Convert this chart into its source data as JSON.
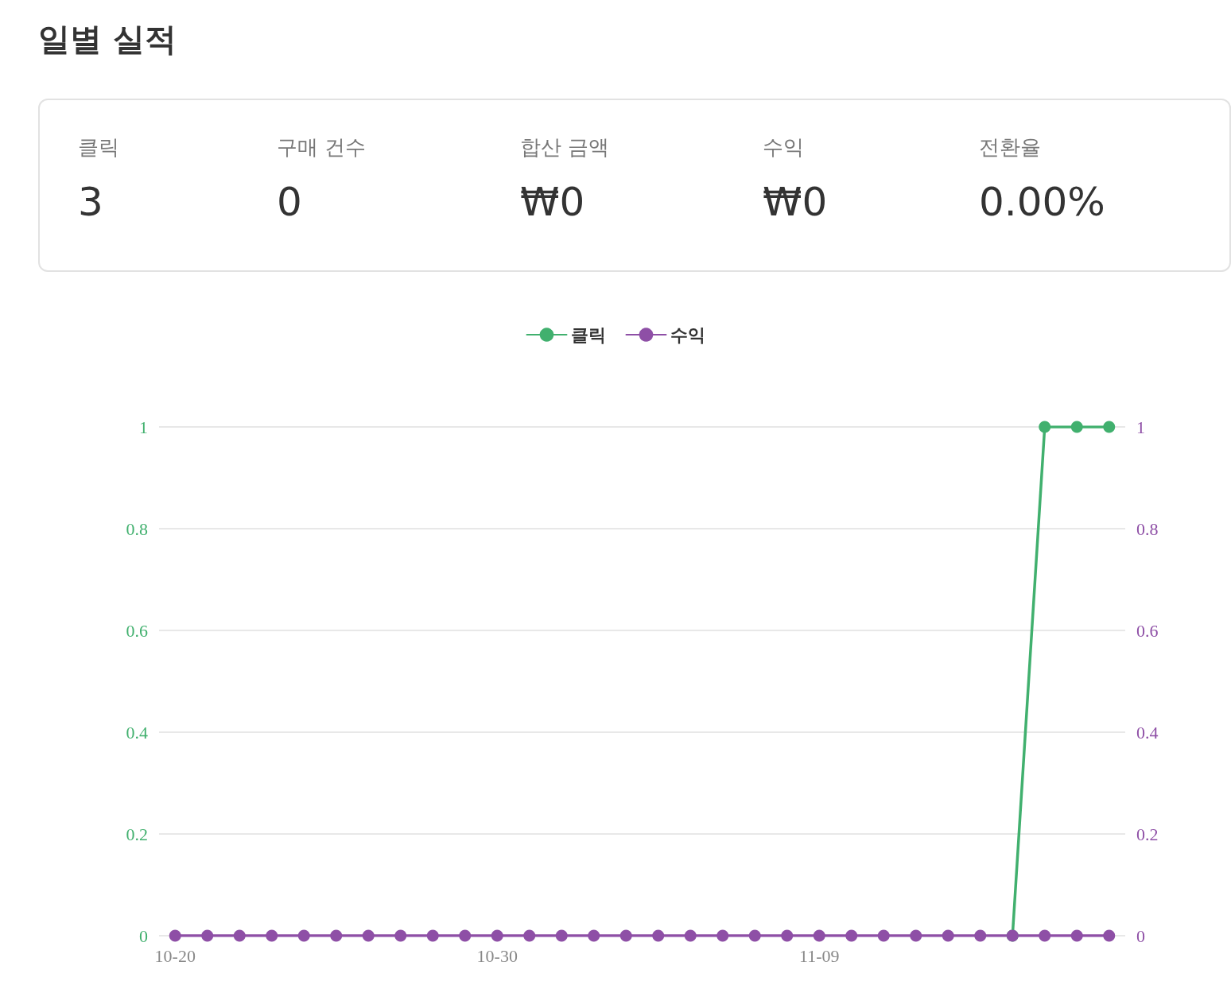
{
  "chart_data": [
    {
      "type": "other",
      "title": "일별 실적",
      "annotations": [
        "클릭",
        "3",
        "구매 건수",
        "0",
        "합산 금액",
        "₩0",
        "수익",
        "₩0",
        "전환율",
        "0.00%"
      ]
    },
    {
      "type": "line",
      "categories": [
        "10-20",
        null,
        null,
        null,
        null,
        null,
        null,
        null,
        null,
        null,
        "10-30",
        null,
        null,
        null,
        null,
        null,
        null,
        null,
        null,
        null,
        "11-09",
        null,
        null,
        null,
        null,
        null,
        null,
        null,
        null,
        null
      ],
      "series": [
        {
          "name": "클릭",
          "color": "#41b06e",
          "values": [
            null,
            null,
            null,
            null,
            null,
            null,
            null,
            null,
            null,
            null,
            null,
            null,
            null,
            null,
            null,
            null,
            null,
            null,
            null,
            null,
            null,
            null,
            null,
            null,
            null,
            null,
            0,
            1,
            1,
            1
          ]
        },
        {
          "name": "수익",
          "color": "#8e4fa6",
          "axis": "y2",
          "values": [
            0,
            0,
            0,
            0,
            0,
            0,
            0,
            0,
            0,
            0,
            0,
            0,
            0,
            0,
            0,
            0,
            0,
            0,
            0,
            0,
            0,
            0,
            0,
            0,
            0,
            0,
            0,
            0,
            0,
            0
          ]
        }
      ],
      "ylim": [
        0,
        1
      ],
      "yticks": [
        0,
        0.2,
        0.4,
        0.6,
        0.8,
        1
      ],
      "y2lim": [
        0,
        1
      ],
      "y2ticks": [
        0,
        0.2,
        0.4,
        0.6,
        0.8,
        1
      ],
      "grid": "y",
      "legend": "top",
      "marker": "circle",
      "line_style": "solid"
    }
  ]
}
